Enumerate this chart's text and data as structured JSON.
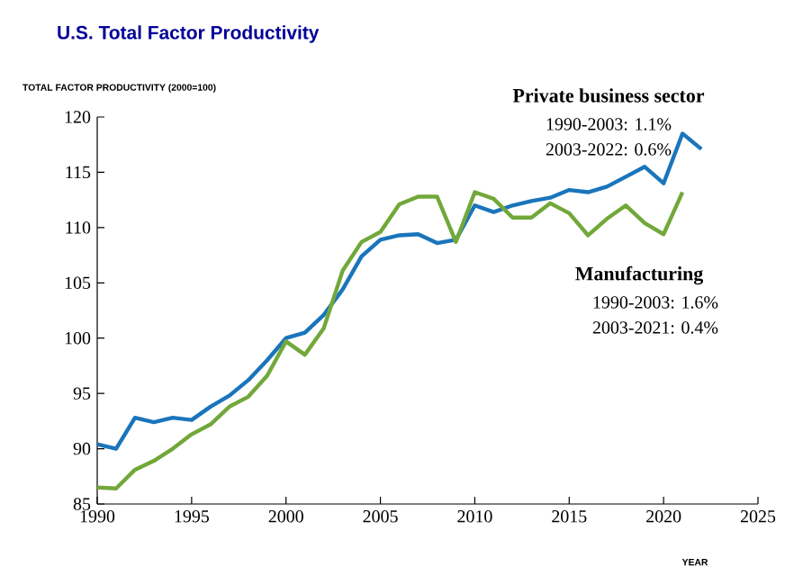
{
  "chart_data": {
    "type": "line",
    "title": "U.S. Total Factor Productivity",
    "ylabel": "TOTAL FACTOR PRODUCTIVITY (2000=100)",
    "xlabel": "YEAR",
    "x": [
      1990,
      1991,
      1992,
      1993,
      1994,
      1995,
      1996,
      1997,
      1998,
      1999,
      2000,
      2001,
      2002,
      2003,
      2004,
      2005,
      2006,
      2007,
      2008,
      2009,
      2010,
      2011,
      2012,
      2013,
      2014,
      2015,
      2016,
      2017,
      2018,
      2019,
      2020,
      2021,
      2022
    ],
    "series": [
      {
        "color": "#1a75bb",
        "values": [
          90.4,
          90.0,
          92.8,
          92.4,
          92.8,
          92.6,
          93.8,
          94.8,
          96.2,
          98.0,
          100.0,
          100.5,
          102.1,
          104.4,
          107.4,
          108.9,
          109.3,
          109.4,
          108.6,
          108.9,
          112.0,
          111.4,
          112.0,
          112.4,
          112.7,
          113.4,
          113.2,
          113.7,
          114.6,
          115.5,
          114.0,
          118.5,
          117.1
        ]
      },
      {
        "color": "#72a83a",
        "values": [
          86.5,
          86.4,
          88.1,
          88.9,
          90.0,
          91.3,
          92.2,
          93.8,
          94.7,
          96.6,
          99.7,
          98.5,
          100.9,
          106.1,
          108.7,
          109.6,
          112.1,
          112.8,
          112.8,
          108.7,
          113.2,
          112.6,
          110.9,
          110.9,
          112.2,
          111.3,
          109.3,
          110.8,
          112.0,
          110.4,
          109.4,
          113.2,
          null
        ]
      }
    ],
    "annotations": [
      "Private business sector",
      "1990-2003: 1.1%",
      "2003-2022: 0.6%",
      "Manufacturing",
      "1990-2003: 1.6%",
      "2003-2021: 0.4%"
    ],
    "xlim": [
      1990,
      2025
    ],
    "xticks": [
      1990,
      1995,
      2000,
      2005,
      2010,
      2015,
      2020,
      2025
    ],
    "ylim": [
      85,
      120
    ],
    "yticks": [
      85,
      90,
      95,
      100,
      105,
      110,
      115,
      120
    ],
    "grid": false,
    "marker": "none",
    "line_style": "solid"
  }
}
